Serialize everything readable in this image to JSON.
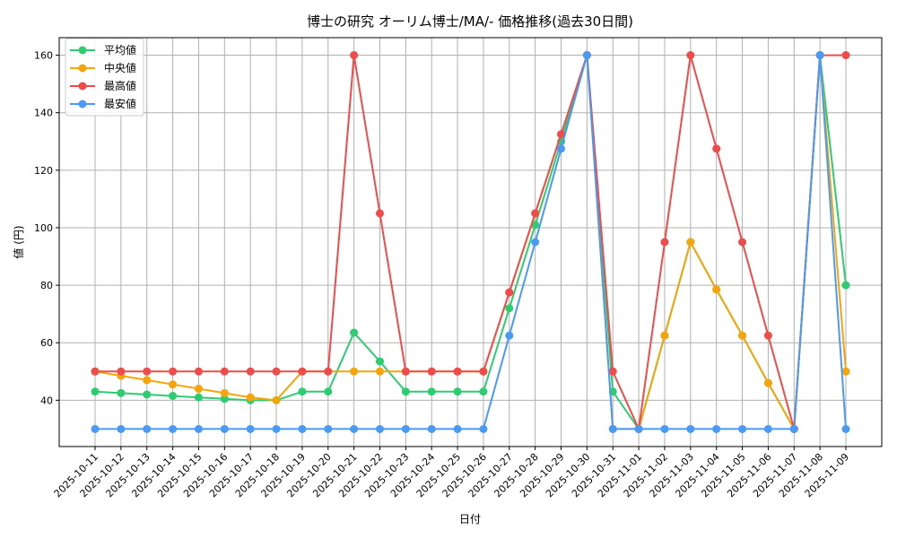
{
  "chart_data": {
    "type": "line",
    "title": "博士の研究 オーリム博士/MA/- 価格推移(過去30日間)",
    "xlabel": "日付",
    "ylabel": "値 (円)",
    "ylim": [
      23.9,
      166.1
    ],
    "y_ticks": [
      40,
      60,
      80,
      100,
      120,
      140,
      160
    ],
    "grid": true,
    "legend_position": "top-left",
    "categories": [
      "2025-10-11",
      "2025-10-12",
      "2025-10-13",
      "2025-10-14",
      "2025-10-15",
      "2025-10-16",
      "2025-10-17",
      "2025-10-18",
      "2025-10-19",
      "2025-10-20",
      "2025-10-21",
      "2025-10-22",
      "2025-10-23",
      "2025-10-24",
      "2025-10-25",
      "2025-10-26",
      "2025-10-27",
      "2025-10-28",
      "2025-10-29",
      "2025-10-30",
      "2025-10-31",
      "2025-11-01",
      "2025-11-02",
      "2025-11-03",
      "2025-11-04",
      "2025-11-05",
      "2025-11-06",
      "2025-11-07",
      "2025-11-08",
      "2025-11-09"
    ],
    "series": [
      {
        "name": "平均値",
        "color": "#2ecc71",
        "values": [
          43,
          42.5,
          42,
          41.5,
          41,
          40.5,
          40,
          40,
          43,
          43,
          63.5,
          53.5,
          43,
          43,
          43,
          43,
          72,
          101,
          130,
          160,
          43,
          30,
          62.5,
          95,
          78.5,
          62.5,
          46,
          30,
          160,
          80
        ]
      },
      {
        "name": "中央値",
        "color": "#f5a50a",
        "values": [
          50,
          48.5,
          47,
          45.5,
          44,
          42.5,
          41,
          40,
          50,
          50,
          50,
          50,
          50,
          50,
          50,
          50,
          77.5,
          105,
          132.5,
          160,
          30,
          30,
          62.5,
          95,
          78.5,
          62.5,
          46,
          30,
          160,
          50
        ]
      },
      {
        "name": "最高値",
        "color": "#ef4b4b",
        "values": [
          50,
          50,
          50,
          50,
          50,
          50,
          50,
          50,
          50,
          50,
          160,
          105,
          50,
          50,
          50,
          50,
          77.5,
          105,
          132.5,
          160,
          50,
          30,
          95,
          160,
          127.5,
          95,
          62.5,
          30,
          160,
          160
        ]
      },
      {
        "name": "最安値",
        "color": "#4a9af5",
        "values": [
          30,
          30,
          30,
          30,
          30,
          30,
          30,
          30,
          30,
          30,
          30,
          30,
          30,
          30,
          30,
          30,
          62.5,
          95,
          127.5,
          160,
          30,
          30,
          30,
          30,
          30,
          30,
          30,
          30,
          160,
          30
        ]
      }
    ]
  }
}
